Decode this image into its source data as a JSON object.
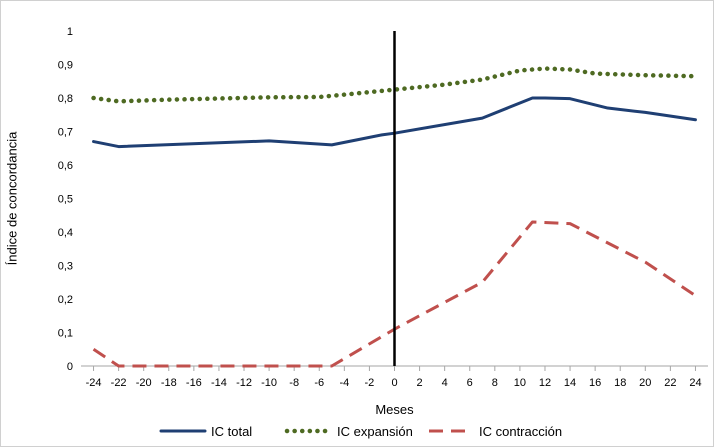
{
  "chart_data": {
    "type": "line",
    "title": "",
    "xlabel": "Meses",
    "ylabel": "Índice de concordancia",
    "xlim": [
      -25,
      25
    ],
    "ylim": [
      0,
      1
    ],
    "x_ticks": [
      "-24",
      "-22",
      "-20",
      "-18",
      "-16",
      "-14",
      "-12",
      "-10",
      "-8",
      "-6",
      "-4",
      "-2",
      "0",
      "2",
      "4",
      "6",
      "8",
      "10",
      "12",
      "14",
      "16",
      "18",
      "20",
      "22",
      "24"
    ],
    "y_ticks": [
      "0",
      "0,1",
      "0,2",
      "0,3",
      "0,4",
      "0,5",
      "0,6",
      "0,7",
      "0,8",
      "0,9",
      "1"
    ],
    "vertical_marker_x": 0,
    "grid": false,
    "legend_position": "bottom",
    "series": [
      {
        "name": "IC total",
        "color": "#1f3f73",
        "style": "solid",
        "points": [
          [
            -24,
            0.67
          ],
          [
            -22,
            0.655
          ],
          [
            -10,
            0.672
          ],
          [
            -5,
            0.66
          ],
          [
            -3,
            0.675
          ],
          [
            -1,
            0.69
          ],
          [
            0,
            0.695
          ],
          [
            7,
            0.74
          ],
          [
            9,
            0.77
          ],
          [
            11,
            0.8
          ],
          [
            12,
            0.8
          ],
          [
            14,
            0.798
          ],
          [
            17,
            0.77
          ],
          [
            20,
            0.757
          ],
          [
            24,
            0.735
          ]
        ]
      },
      {
        "name": "IC expansión",
        "color": "#4e6a22",
        "style": "dotted",
        "points": [
          [
            -24,
            0.8
          ],
          [
            -22,
            0.79
          ],
          [
            -18,
            0.795
          ],
          [
            -10,
            0.802
          ],
          [
            -6,
            0.803
          ],
          [
            -4,
            0.81
          ],
          [
            0,
            0.825
          ],
          [
            4,
            0.84
          ],
          [
            7,
            0.855
          ],
          [
            10,
            0.882
          ],
          [
            12,
            0.888
          ],
          [
            14,
            0.885
          ],
          [
            16,
            0.873
          ],
          [
            20,
            0.868
          ],
          [
            24,
            0.865
          ]
        ]
      },
      {
        "name": "IC contracción",
        "color": "#c0504d",
        "style": "dashed",
        "points": [
          [
            -24,
            0.05
          ],
          [
            -22,
            0
          ],
          [
            -20,
            0
          ],
          [
            -5,
            0
          ],
          [
            0,
            0.11
          ],
          [
            7,
            0.25
          ],
          [
            11,
            0.43
          ],
          [
            14,
            0.425
          ],
          [
            20,
            0.31
          ],
          [
            24,
            0.21
          ]
        ]
      }
    ]
  }
}
